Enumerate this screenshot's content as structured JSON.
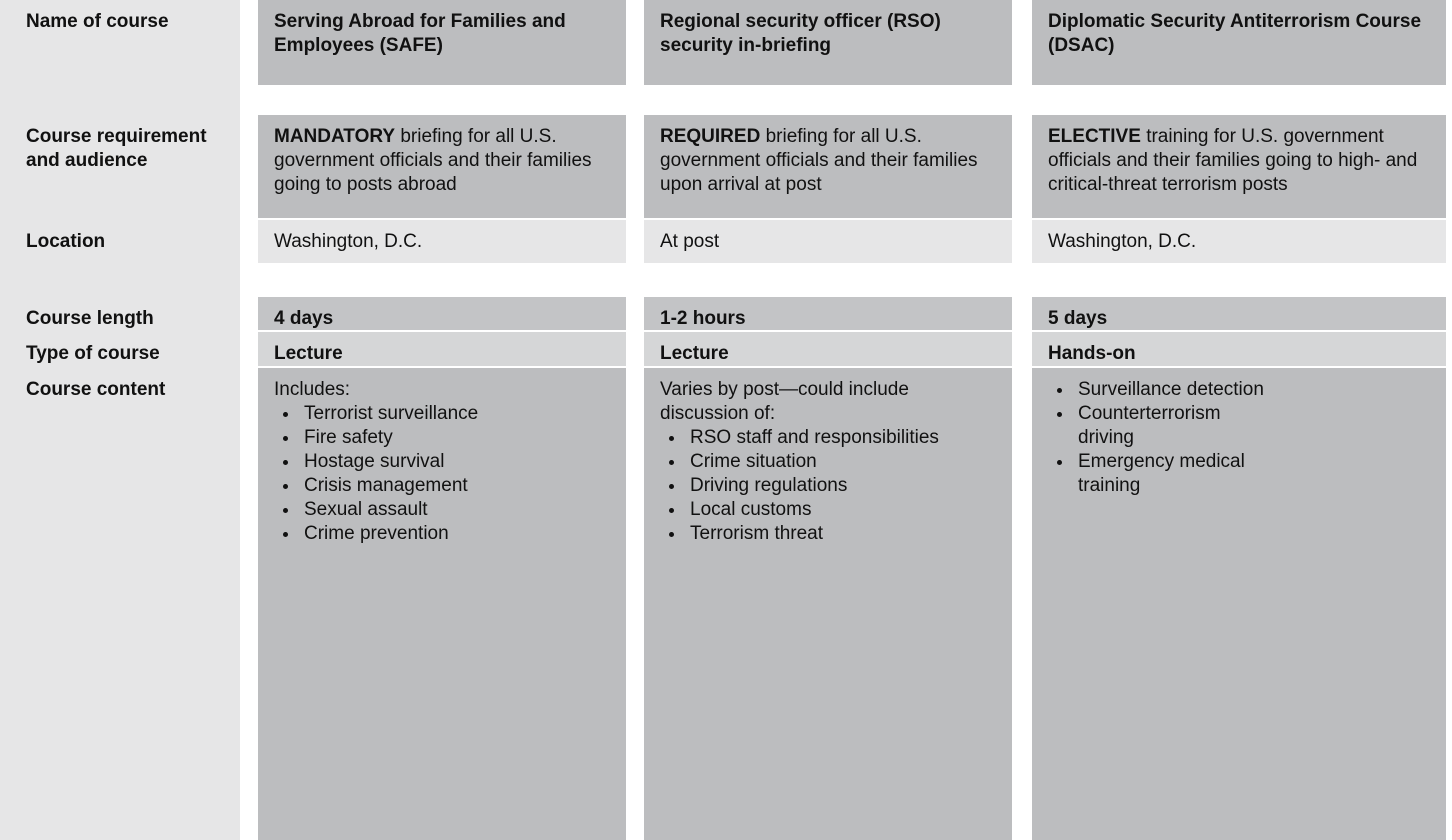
{
  "table": {
    "rows": [
      {
        "label": "Name of course",
        "cells": [
          "Serving Abroad for Families and Employees (SAFE)",
          "Regional security officer (RSO) security in-briefing",
          "Diplomatic Security Antiterrorism Course (DSAC)"
        ]
      },
      {
        "label": "Course requirement and audience",
        "cells": [
          {
            "emphasis": "MANDATORY",
            "text": "briefing for all U.S. government officials and their families going to posts abroad"
          },
          {
            "emphasis": "REQUIRED",
            "text": "briefing for all U.S. government officials and their families upon arrival at post"
          },
          {
            "emphasis": "ELECTIVE",
            "text": "training for U.S. government officials and their families going to high- and critical-threat terrorism posts"
          }
        ]
      },
      {
        "label": "Location",
        "cells": [
          "Washington, D.C.",
          "At post",
          "Washington, D.C."
        ]
      },
      {
        "label": "Course length",
        "cells": [
          "4 days",
          "1-2 hours",
          "5 days"
        ]
      },
      {
        "label": "Type of course",
        "cells": [
          "Lecture",
          "Lecture",
          "Hands-on"
        ]
      },
      {
        "label": "Course content",
        "cells": [
          {
            "intro": "Includes:",
            "items": [
              "Terrorist surveillance",
              "Fire safety",
              "Hostage survival",
              "Crisis management",
              "Sexual assault",
              "Crime prevention"
            ]
          },
          {
            "intro": "Varies by post—could include discussion of:",
            "items": [
              "RSO staff and responsibilities",
              "Crime situation",
              "Driving regulations",
              "Local customs",
              "Terrorism threat"
            ]
          },
          {
            "items": [
              "Surveillance detection",
              "Counterterrorism driving",
              "Emergency medical training"
            ]
          }
        ]
      }
    ]
  }
}
